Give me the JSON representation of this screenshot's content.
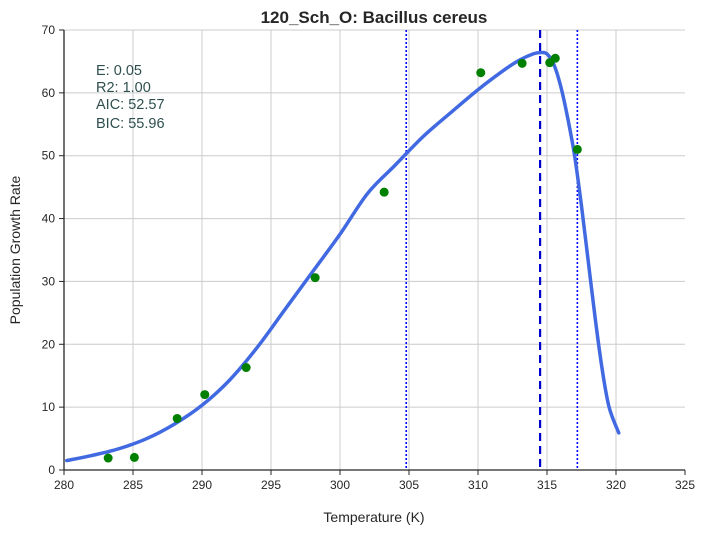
{
  "chart_data": {
    "type": "scatter",
    "title": "120_Sch_O: Bacillus cereus",
    "xlabel": "Temperature (K)",
    "ylabel": "Population Growth Rate",
    "xlim": [
      280,
      325
    ],
    "ylim": [
      0,
      70
    ],
    "xticks": [
      "280",
      "285",
      "290",
      "295",
      "300",
      "305",
      "310",
      "315",
      "320",
      "325"
    ],
    "yticks": [
      "0",
      "10",
      "20",
      "30",
      "40",
      "50",
      "60",
      "70"
    ],
    "grid": true,
    "stats_lines": [
      "E:  0.05",
      "R2:  1.00",
      "AIC: 52.57",
      "BIC: 55.96"
    ],
    "points": {
      "name": "observed",
      "color": "#008000",
      "x": [
        283.2,
        285.1,
        288.2,
        290.2,
        293.2,
        298.2,
        303.2,
        310.2,
        313.2,
        315.2,
        315.6,
        317.2
      ],
      "y": [
        1.9,
        2.0,
        8.2,
        12.0,
        16.3,
        30.6,
        44.2,
        63.2,
        64.7,
        64.8,
        65.5,
        51.0
      ]
    },
    "fit_curve": {
      "name": "model fit",
      "color": "#4169e1",
      "x": [
        280.2,
        282,
        284,
        286,
        288,
        290,
        292,
        294,
        296,
        298,
        300,
        302,
        304,
        306,
        308,
        310,
        312,
        313,
        314,
        314.5,
        315,
        315.5,
        316,
        316.5,
        317,
        317.5,
        318,
        318.5,
        319,
        319.5,
        320.2
      ],
      "y": [
        1.5,
        2.3,
        3.4,
        5.0,
        7.3,
        10.3,
        14.3,
        19.5,
        25.5,
        31.5,
        37.5,
        44.0,
        48.5,
        53.0,
        56.8,
        60.5,
        63.8,
        65.2,
        66.2,
        66.4,
        66.2,
        64.5,
        61.0,
        56.0,
        50.0,
        42.0,
        33.0,
        24.0,
        16.0,
        10.0,
        5.9
      ]
    },
    "vlines": [
      {
        "x": 304.8,
        "style": "dotted",
        "color": "#0000ff"
      },
      {
        "x": 314.5,
        "style": "dashed",
        "color": "#0000cc"
      },
      {
        "x": 317.2,
        "style": "dotted",
        "color": "#0000ff"
      }
    ]
  }
}
